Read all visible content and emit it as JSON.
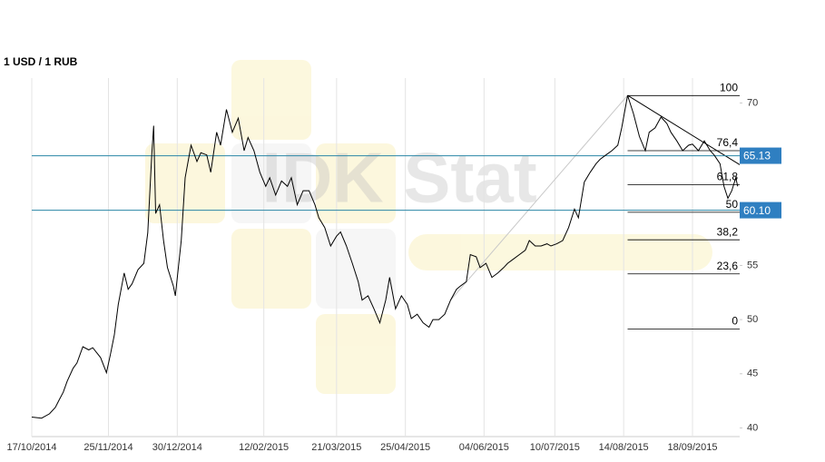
{
  "chart_data": {
    "type": "line",
    "title": "1 USD / 1 RUB",
    "watermark": "IDK Stat",
    "color": "#000000",
    "x": [
      "17/10/2014",
      "22/10/2014",
      "26/10/2014",
      "29/10/2014",
      "31/10/2014",
      "02/11/2014",
      "04/11/2014",
      "07/11/2014",
      "09/11/2014",
      "12/11/2014",
      "15/11/2014",
      "17/11/2014",
      "21/11/2014",
      "24/11/2014",
      "26/11/2014",
      "28/11/2014",
      "30/11/2014",
      "03/12/2014",
      "05/12/2014",
      "07/12/2014",
      "10/12/2014",
      "13/12/2014",
      "15/12/2014",
      "17/12/2014",
      "18/12/2014",
      "19/12/2014",
      "21/12/2014",
      "23/12/2014",
      "25/12/2014",
      "28/12/2014",
      "29/12/2014",
      "01/01/2015",
      "03/01/2015",
      "06/01/2015",
      "09/01/2015",
      "11/01/2015",
      "14/01/2015",
      "16/01/2015",
      "19/01/2015",
      "21/01/2015",
      "24/01/2015",
      "27/01/2015",
      "30/01/2015",
      "02/02/2015",
      "04/02/2015",
      "07/02/2015",
      "10/02/2015",
      "13/02/2015",
      "15/02/2015",
      "18/02/2015",
      "21/02/2015",
      "24/02/2015",
      "26/02/2015",
      "01/03/2015",
      "04/03/2015",
      "07/03/2015",
      "10/03/2015",
      "12/03/2015",
      "15/03/2015",
      "18/03/2015",
      "21/03/2015",
      "23/03/2015",
      "26/03/2015",
      "29/03/2015",
      "01/04/2015",
      "03/04/2015",
      "06/04/2015",
      "09/04/2015",
      "12/04/2015",
      "15/04/2015",
      "17/04/2015",
      "20/04/2015",
      "23/04/2015",
      "26/04/2015",
      "28/04/2015",
      "01/05/2015",
      "04/05/2015",
      "07/05/2015",
      "09/05/2015",
      "12/05/2015",
      "15/05/2015",
      "18/05/2015",
      "21/05/2015",
      "23/05/2015",
      "26/05/2015",
      "28/05/2015",
      "31/05/2015",
      "02/06/2015",
      "05/06/2015",
      "08/06/2015",
      "11/06/2015",
      "14/06/2015",
      "16/06/2015",
      "19/06/2015",
      "22/06/2015",
      "25/06/2015",
      "27/06/2015",
      "30/06/2015",
      "03/07/2015",
      "06/07/2015",
      "08/07/2015",
      "11/07/2015",
      "14/07/2015",
      "17/07/2015",
      "20/07/2015",
      "22/07/2015",
      "25/07/2015",
      "28/07/2015",
      "31/07/2015",
      "02/08/2015",
      "05/08/2015",
      "08/08/2015",
      "11/08/2015",
      "13/08/2015",
      "16/08/2015",
      "19/08/2015",
      "22/08/2015",
      "25/08/2015",
      "27/08/2015",
      "30/08/2015",
      "02/09/2015",
      "05/09/2015",
      "07/09/2015",
      "10/09/2015",
      "13/09/2015",
      "16/09/2015",
      "18/09/2015",
      "21/09/2015",
      "24/09/2015",
      "27/09/2015",
      "29/09/2015",
      "02/10/2015",
      "04/10/2015",
      "06/10/2015",
      "08/10/2015",
      "10/10/2015",
      "11/10/2015"
    ],
    "values": [
      41.0,
      40.9,
      41.3,
      41.9,
      42.6,
      43.3,
      44.3,
      45.5,
      46.0,
      47.5,
      47.2,
      47.4,
      46.5,
      45.1,
      46.8,
      48.6,
      51.4,
      54.3,
      52.8,
      53.3,
      54.6,
      55.2,
      58.0,
      65.2,
      67.9,
      59.8,
      60.6,
      57.3,
      54.8,
      53.1,
      52.2,
      57.3,
      63.1,
      66.1,
      64.6,
      65.4,
      65.2,
      63.6,
      67.3,
      66.1,
      69.4,
      67.3,
      68.6,
      65.6,
      66.8,
      65.6,
      63.6,
      62.3,
      63.1,
      61.5,
      62.8,
      62.3,
      63.1,
      60.6,
      61.9,
      61.9,
      60.6,
      59.4,
      58.5,
      56.8,
      57.7,
      58.1,
      56.8,
      55.2,
      53.5,
      51.8,
      52.2,
      51.0,
      49.7,
      51.8,
      53.9,
      51.0,
      52.2,
      51.4,
      50.1,
      50.5,
      49.7,
      49.3,
      50.0,
      50.0,
      50.5,
      51.8,
      52.8,
      53.1,
      53.5,
      56.0,
      55.8,
      54.8,
      55.2,
      53.9,
      54.3,
      54.8,
      55.2,
      55.6,
      56.0,
      56.4,
      57.3,
      56.8,
      56.8,
      57.0,
      56.8,
      57.0,
      57.3,
      58.5,
      60.2,
      59.4,
      62.7,
      63.6,
      64.4,
      64.8,
      65.2,
      65.6,
      66.1,
      67.7,
      70.7,
      69.0,
      66.9,
      65.6,
      67.3,
      67.7,
      68.7,
      68.1,
      67.3,
      66.5,
      65.6,
      66.1,
      66.2,
      65.6,
      66.5,
      65.6,
      65.2,
      64.4,
      62.3,
      61.2,
      61.9,
      63.1,
      62.3
    ],
    "xlim": [
      "17/10/2014",
      "12/10/2015"
    ],
    "xticks": [
      "17/10/2014",
      "25/11/2014",
      "30/12/2014",
      "12/02/2015",
      "21/03/2015",
      "25/04/2015",
      "04/06/2015",
      "10/07/2015",
      "14/08/2015",
      "18/09/2015"
    ],
    "ylim": [
      39.2,
      72.3
    ],
    "yticks": [
      40,
      45,
      50,
      55,
      70
    ],
    "hlines": [
      65.13,
      {
        "value": 60.1,
        "label": "60.10"
      }
    ],
    "fibonacci": {
      "start": "16/08/2015",
      "end": "12/10/2015",
      "high": 70.68,
      "low": 49.14,
      "levels": [
        100,
        {
          "value": 76.4,
          "label": "76,4"
        },
        {
          "value": 61.8,
          "label": "61,8"
        },
        50,
        {
          "value": 38.2,
          "label": "38,2"
        },
        {
          "value": 23.6,
          "label": "23,6"
        },
        0
      ]
    },
    "trendlines": [
      {
        "color": "#c8c8c8",
        "x": [
          "18/05/2015",
          "16/08/2015"
        ],
        "values": [
          51.8,
          70.7
        ]
      },
      {
        "color": "#000000",
        "x": [
          "16/08/2015",
          "12/10/2015"
        ],
        "values": [
          70.7,
          64.3
        ]
      }
    ]
  }
}
